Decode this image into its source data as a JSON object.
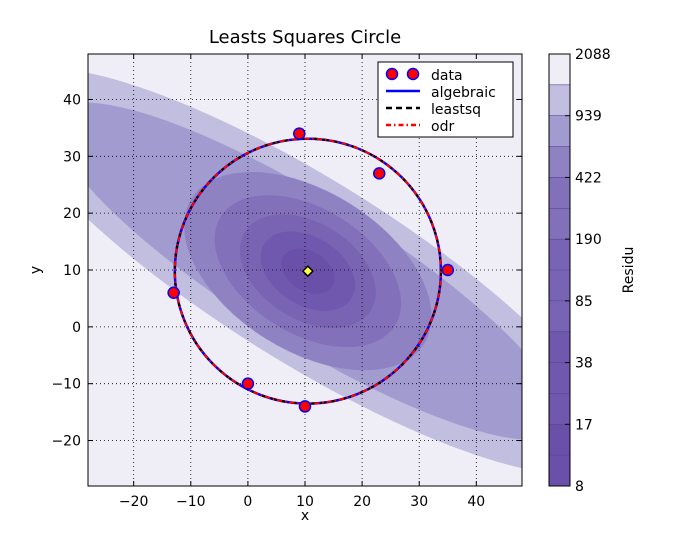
{
  "chart_data": {
    "type": "scatter",
    "title": "Leasts Squares Circle",
    "xlabel": "x",
    "ylabel": "y",
    "xlim": [
      -28,
      48
    ],
    "ylim": [
      -28,
      48
    ],
    "xticks": [
      -20,
      -10,
      0,
      10,
      20,
      30,
      40
    ],
    "yticks": [
      -20,
      -10,
      0,
      10,
      20,
      30,
      40
    ],
    "grid": true,
    "points": [
      {
        "x": 9,
        "y": 34
      },
      {
        "x": 23,
        "y": 27
      },
      {
        "x": 35,
        "y": 10
      },
      {
        "x": 10,
        "y": -14
      },
      {
        "x": 0,
        "y": -10
      },
      {
        "x": -13,
        "y": 6
      }
    ],
    "center": {
      "x": 10.5,
      "y": 9.8
    },
    "radius": 23.3,
    "legend": {
      "position": "top-right",
      "entries": [
        {
          "label": "data",
          "style": "markers",
          "color": "#ff0000",
          "edge": "#0000ff"
        },
        {
          "label": "algebraic",
          "style": "solid",
          "color": "#0000ff"
        },
        {
          "label": "leastsq",
          "style": "dashed",
          "color": "#000000"
        },
        {
          "label": "odr",
          "style": "dashdot",
          "color": "#ff0000"
        }
      ]
    },
    "colorbar": {
      "label": "Residu",
      "tick_labels": [
        "2088",
        "939",
        "422",
        "190",
        "85",
        "38",
        "17",
        "8"
      ],
      "levels": 14
    },
    "contour_colors": [
      "#efeef7",
      "#c1bedf",
      "#a29bcf",
      "#8f82c3",
      "#8271ba",
      "#7864b3",
      "#6f58ad",
      "#6a50a8"
    ]
  }
}
